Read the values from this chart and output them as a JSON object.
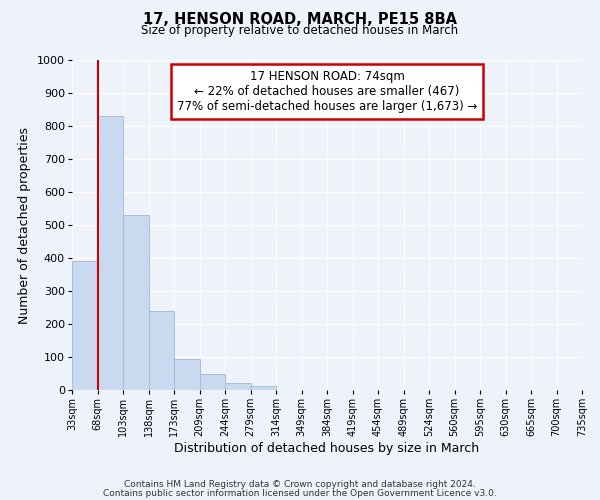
{
  "title": "17, HENSON ROAD, MARCH, PE15 8BA",
  "subtitle": "Size of property relative to detached houses in March",
  "xlabel": "Distribution of detached houses by size in March",
  "ylabel": "Number of detached properties",
  "bin_labels": [
    "33sqm",
    "68sqm",
    "103sqm",
    "138sqm",
    "173sqm",
    "209sqm",
    "244sqm",
    "279sqm",
    "314sqm",
    "349sqm",
    "384sqm",
    "419sqm",
    "454sqm",
    "489sqm",
    "524sqm",
    "560sqm",
    "595sqm",
    "630sqm",
    "665sqm",
    "700sqm",
    "735sqm"
  ],
  "bar_values": [
    390,
    830,
    530,
    240,
    95,
    50,
    20,
    12,
    0,
    0,
    0,
    0,
    0,
    0,
    0,
    0,
    0,
    0,
    0,
    0
  ],
  "bar_color": "#c8d9f0",
  "bar_edge_color": "#a0b8d8",
  "vline_x": 1,
  "vline_color": "#cc0000",
  "ylim": [
    0,
    1000
  ],
  "yticks": [
    0,
    100,
    200,
    300,
    400,
    500,
    600,
    700,
    800,
    900,
    1000
  ],
  "annotation_title": "17 HENSON ROAD: 74sqm",
  "annotation_line1": "← 22% of detached houses are smaller (467)",
  "annotation_line2": "77% of semi-detached houses are larger (1,673) →",
  "annotation_box_color": "#ffffff",
  "annotation_box_edge": "#cc0000",
  "footer_line1": "Contains HM Land Registry data © Crown copyright and database right 2024.",
  "footer_line2": "Contains public sector information licensed under the Open Government Licence v3.0.",
  "background_color": "#eef2fa",
  "grid_color": "#ffffff"
}
